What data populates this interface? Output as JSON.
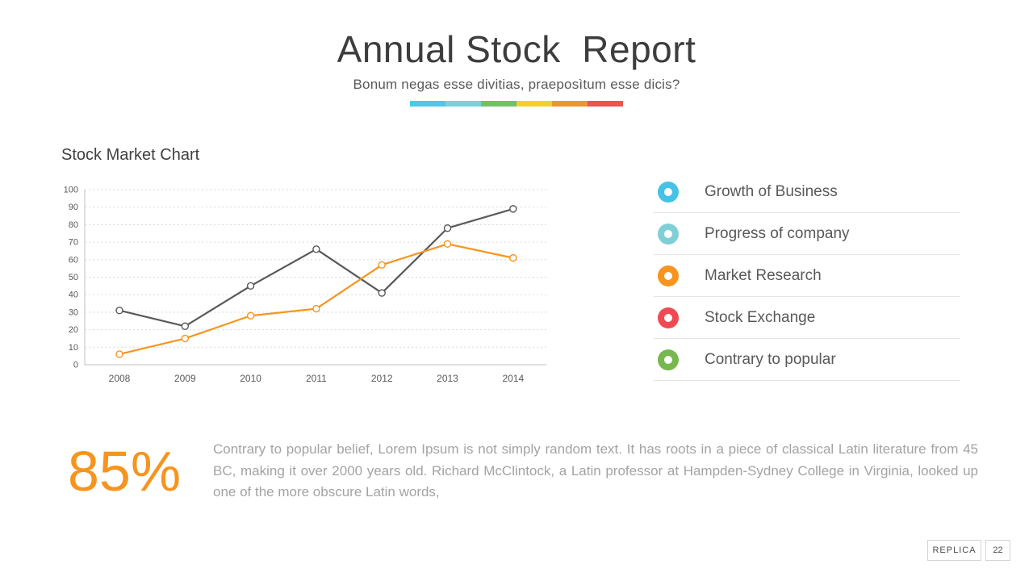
{
  "slide": {
    "title": "Annual Stock  Report",
    "subtitle": "Bonum negas esse divitias, praeposìtum esse dicis?",
    "accent_bar_colors": [
      "#4ec8e6",
      "#79d2d8",
      "#72c167",
      "#f2d02c",
      "#f0952b",
      "#ee5253"
    ]
  },
  "chart": {
    "heading": "Stock Market Chart"
  },
  "chart_data": {
    "type": "line",
    "title": "Stock Market Chart",
    "categories": [
      "2008",
      "2009",
      "2010",
      "2011",
      "2012",
      "2013",
      "2014"
    ],
    "series": [
      {
        "name": "Growth of Business",
        "color": "#58595b",
        "values": [
          31,
          22,
          45,
          66,
          41,
          78,
          89
        ]
      },
      {
        "name": "Market Research",
        "color": "#f7941e",
        "values": [
          6,
          15,
          28,
          32,
          57,
          69,
          61
        ]
      }
    ],
    "xlabel": "",
    "ylabel": "",
    "ylim": [
      0,
      100
    ],
    "ytick_step": 10,
    "grid": true,
    "legend_position": "right"
  },
  "legend": {
    "items": [
      {
        "label": "Growth of Business",
        "color": "#45c2e6"
      },
      {
        "label": "Progress of company",
        "color": "#7fd0d6"
      },
      {
        "label": "Market Research",
        "color": "#f7941e"
      },
      {
        "label": "Stock Exchange",
        "color": "#ef4a52"
      },
      {
        "label": "Contrary to popular",
        "color": "#76b84e"
      }
    ]
  },
  "stat": {
    "value": "85%",
    "description": "Contrary to popular belief, Lorem Ipsum is not simply random text. It has roots in a piece of classical Latin literature from 45 BC, making it over 2000 years old. Richard McClintock, a Latin professor at Hampden-Sydney College in Virginia, looked up one of the more obscure Latin words,"
  },
  "footer": {
    "brand": "REPLICA",
    "page_number": "22"
  }
}
